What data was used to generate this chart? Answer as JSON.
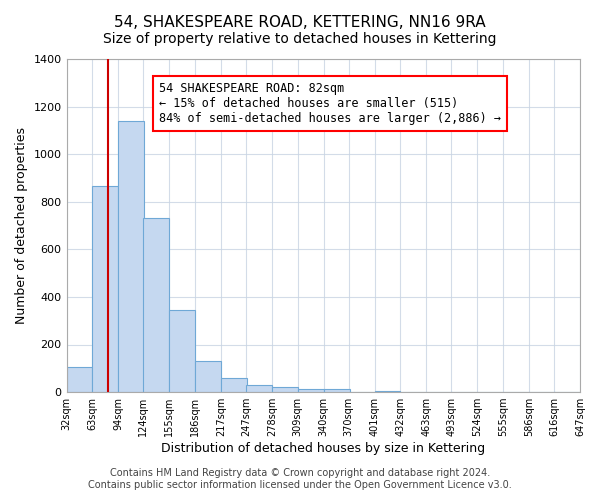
{
  "title": "54, SHAKESPEARE ROAD, KETTERING, NN16 9RA",
  "subtitle": "Size of property relative to detached houses in Kettering",
  "xlabel": "Distribution of detached houses by size in Kettering",
  "ylabel": "Number of detached properties",
  "bar_left_edges": [
    32,
    63,
    94,
    124,
    155,
    186,
    217,
    247,
    278,
    309,
    340,
    370,
    401,
    432,
    463,
    493,
    524,
    555,
    586,
    616
  ],
  "bar_heights": [
    105,
    865,
    1140,
    730,
    345,
    130,
    60,
    30,
    20,
    15,
    12,
    0,
    5,
    0,
    0,
    0,
    0,
    0,
    0,
    0
  ],
  "bin_width": 31,
  "bar_color": "#c5d8f0",
  "bar_edge_color": "#6fa8d6",
  "bar_edge_width": 0.8,
  "redline_x": 82,
  "annotation_box_text": "54 SHAKESPEARE ROAD: 82sqm\n← 15% of detached houses are smaller (515)\n84% of semi-detached houses are larger (2,886) →",
  "redline_color": "#cc0000",
  "ylim": [
    0,
    1400
  ],
  "yticks": [
    0,
    200,
    400,
    600,
    800,
    1000,
    1200,
    1400
  ],
  "xtick_labels": [
    "32sqm",
    "63sqm",
    "94sqm",
    "124sqm",
    "155sqm",
    "186sqm",
    "217sqm",
    "247sqm",
    "278sqm",
    "309sqm",
    "340sqm",
    "370sqm",
    "401sqm",
    "432sqm",
    "463sqm",
    "493sqm",
    "524sqm",
    "555sqm",
    "586sqm",
    "616sqm",
    "647sqm"
  ],
  "footer_line1": "Contains HM Land Registry data © Crown copyright and database right 2024.",
  "footer_line2": "Contains public sector information licensed under the Open Government Licence v3.0.",
  "title_fontsize": 11,
  "subtitle_fontsize": 10,
  "xlabel_fontsize": 9,
  "ylabel_fontsize": 9,
  "xtick_fontsize": 7,
  "ytick_fontsize": 8,
  "annotation_fontsize": 8.5,
  "footer_fontsize": 7,
  "bg_color": "#ffffff",
  "grid_color": "#c8d4e3",
  "grid_alpha": 0.8
}
